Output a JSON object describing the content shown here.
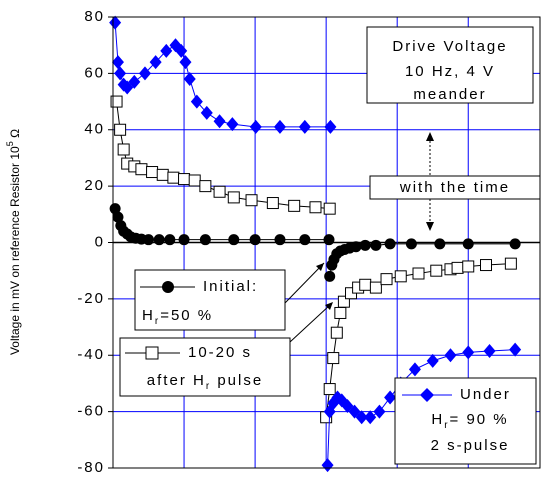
{
  "chart_data": {
    "type": "line",
    "y_label": {
      "text": "Voltage in mV on reference Resistor 10",
      "sup": "5",
      "after": " Ω"
    },
    "xlim": [
      0,
      6.01
    ],
    "xticks": [
      1,
      2,
      3,
      4,
      5
    ],
    "ylim": [
      -80,
      80
    ],
    "yticks": [
      -80,
      -60,
      -40,
      -20,
      0,
      20,
      40,
      60,
      80
    ],
    "grid": true,
    "grid_color": "#0000ff",
    "annotations": [
      {
        "lines": [
          "Drive Voltage",
          "10 Hz, 4 V",
          "meander"
        ]
      },
      {
        "lines": [
          "with the time"
        ]
      }
    ],
    "series": [
      {
        "name": "Initial:",
        "name_note": {
          "main": "H",
          "sub": "r",
          "rest": "=50 %"
        },
        "marker": "circle",
        "color": "#000000",
        "x": [
          0.03,
          0.07,
          0.11,
          0.15,
          0.2,
          0.25,
          0.32,
          0.4,
          0.5,
          0.65,
          0.8,
          1.0,
          1.3,
          1.7,
          2.0,
          2.35,
          2.7,
          3.04,
          null,
          3.05,
          3.08,
          3.11,
          3.15,
          3.2,
          3.26,
          3.33,
          3.42,
          3.55,
          3.7,
          3.9,
          4.2,
          4.6,
          5.0,
          5.66
        ],
        "values": [
          12,
          9,
          6,
          4,
          3,
          2,
          1.5,
          1.2,
          1,
          1,
          1,
          1,
          1,
          1,
          1,
          1,
          1,
          1,
          null,
          -12,
          -8,
          -6,
          -4,
          -3,
          -2.5,
          -2,
          -1.5,
          -1,
          -1,
          -0.5,
          -0.5,
          -0.5,
          -0.5,
          -0.5
        ]
      },
      {
        "name": "10-20 s",
        "name_note": {
          "main": "after H",
          "sub": "r",
          "rest": " pulse"
        },
        "marker": "square",
        "color": "#000000",
        "x": [
          0.05,
          0.1,
          0.15,
          0.2,
          0.3,
          0.4,
          0.55,
          0.7,
          0.85,
          1.0,
          1.15,
          1.3,
          1.5,
          1.7,
          1.95,
          2.25,
          2.55,
          2.85,
          3.05,
          null,
          3.0,
          3.05,
          3.1,
          3.15,
          3.2,
          3.25,
          3.35,
          3.45,
          3.55,
          3.7,
          3.85,
          4.05,
          4.3,
          4.55,
          4.75,
          4.85,
          5.0,
          5.25,
          5.6
        ],
        "values": [
          50,
          40,
          33,
          28,
          27,
          26,
          25,
          24,
          23,
          22.5,
          22,
          20,
          18,
          16,
          15,
          14,
          13,
          12.5,
          12,
          null,
          -62,
          -52,
          -41,
          -32,
          -25,
          -21,
          -18,
          -16,
          -15,
          -16,
          -13,
          -12,
          -11,
          -10,
          -9.5,
          -9,
          -8.5,
          -8,
          -7.5
        ]
      },
      {
        "name": "Under",
        "name_note": {
          "main": "H",
          "sub": "r",
          "rest": "= 90 %",
          "extra": "2 s-pulse"
        },
        "marker": "diamond",
        "color": "#0000ff",
        "x": [
          0.03,
          0.07,
          0.1,
          0.15,
          0.2,
          0.3,
          0.45,
          0.6,
          0.75,
          0.88,
          0.96,
          1.02,
          1.08,
          1.18,
          1.32,
          1.5,
          1.68,
          2.01,
          2.35,
          2.7,
          3.06,
          null,
          3.02,
          3.05,
          3.1,
          3.16,
          3.22,
          3.3,
          3.4,
          3.5,
          3.62,
          3.75,
          3.9,
          4.05,
          4.25,
          4.5,
          4.75,
          5.0,
          5.3,
          5.66
        ],
        "values": [
          78,
          64,
          60,
          56,
          55,
          57,
          60,
          64,
          68,
          70,
          68,
          64,
          58,
          50,
          46,
          43,
          42,
          41,
          41,
          41,
          41,
          null,
          -79,
          -60,
          -57,
          -55,
          -56,
          -58,
          -60,
          -62,
          -62,
          -60,
          -55,
          -50,
          -45,
          -42,
          -40,
          -39,
          -38.5,
          -38
        ]
      }
    ]
  }
}
